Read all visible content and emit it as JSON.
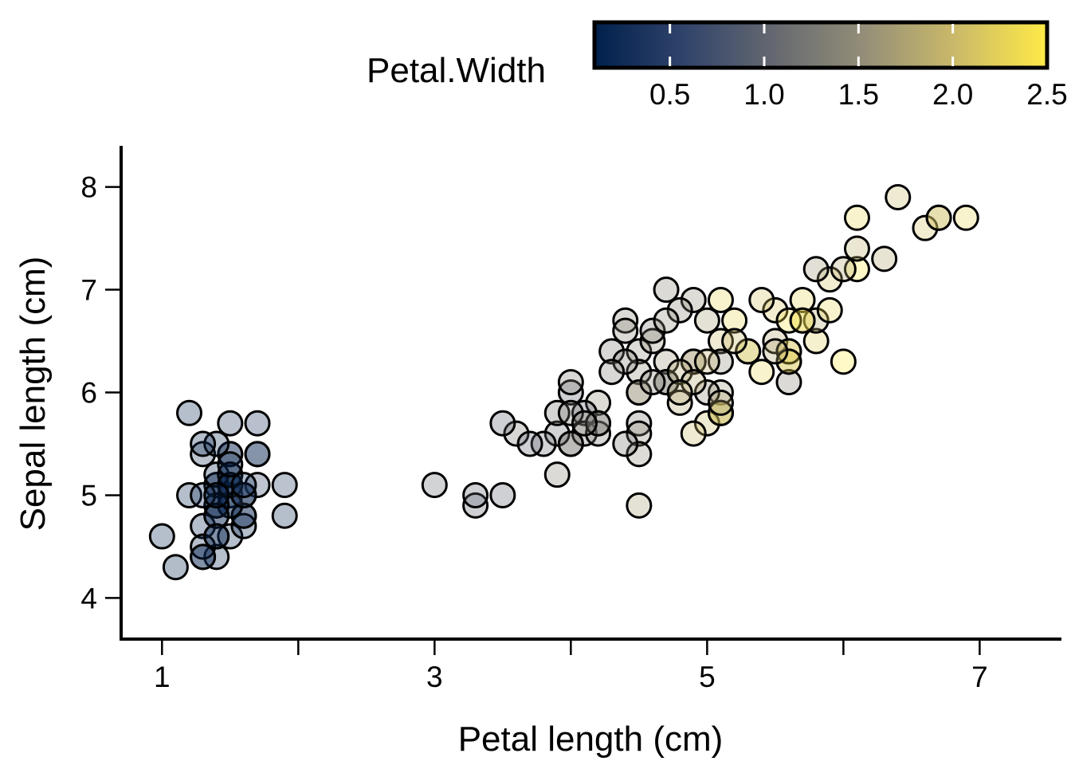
{
  "chart_data": {
    "type": "scatter",
    "xlabel": "Petal length (cm)",
    "ylabel": "Sepal length (cm)",
    "xlim": [
      0.7,
      7.6
    ],
    "ylim": [
      3.6,
      8.4
    ],
    "xticks": [
      1,
      2,
      3,
      4,
      5,
      6,
      7
    ],
    "xtick_labels": [
      "1",
      "",
      "3",
      "",
      "5",
      "",
      "7"
    ],
    "yticks": [
      4,
      5,
      6,
      7,
      8
    ],
    "ytick_labels": [
      "4",
      "5",
      "6",
      "7",
      "8"
    ],
    "grid": false,
    "legend": {
      "title": "Petal.Width",
      "placement": "top-right",
      "type": "colorbar",
      "range": [
        0.1,
        2.5
      ],
      "ticks": [
        0.5,
        1.0,
        1.5,
        2.0,
        2.5
      ],
      "tick_labels": [
        "0.5",
        "1.0",
        "1.5",
        "2.0",
        "2.5"
      ],
      "colors": [
        "#00204D",
        "#31446B",
        "#666970",
        "#958F78",
        "#CBBA69",
        "#FFEA46"
      ]
    },
    "point_alpha": 0.3,
    "points": [
      [
        1.4,
        5.1,
        0.2
      ],
      [
        1.4,
        4.9,
        0.2
      ],
      [
        1.3,
        4.7,
        0.2
      ],
      [
        1.5,
        4.6,
        0.2
      ],
      [
        1.4,
        5.0,
        0.2
      ],
      [
        1.7,
        5.4,
        0.4
      ],
      [
        1.4,
        4.6,
        0.3
      ],
      [
        1.5,
        5.0,
        0.2
      ],
      [
        1.4,
        4.4,
        0.2
      ],
      [
        1.5,
        4.9,
        0.1
      ],
      [
        1.5,
        5.4,
        0.2
      ],
      [
        1.6,
        4.8,
        0.2
      ],
      [
        1.4,
        4.8,
        0.1
      ],
      [
        1.1,
        4.3,
        0.1
      ],
      [
        1.2,
        5.8,
        0.2
      ],
      [
        1.5,
        5.7,
        0.4
      ],
      [
        1.3,
        5.4,
        0.4
      ],
      [
        1.4,
        5.1,
        0.3
      ],
      [
        1.7,
        5.7,
        0.3
      ],
      [
        1.5,
        5.1,
        0.3
      ],
      [
        1.7,
        5.4,
        0.2
      ],
      [
        1.5,
        5.1,
        0.4
      ],
      [
        1.0,
        4.6,
        0.2
      ],
      [
        1.7,
        5.1,
        0.5
      ],
      [
        1.9,
        4.8,
        0.2
      ],
      [
        1.6,
        5.0,
        0.2
      ],
      [
        1.6,
        5.0,
        0.4
      ],
      [
        1.5,
        5.2,
        0.2
      ],
      [
        1.4,
        5.2,
        0.2
      ],
      [
        1.6,
        4.7,
        0.2
      ],
      [
        1.6,
        4.8,
        0.2
      ],
      [
        1.5,
        5.4,
        0.4
      ],
      [
        1.5,
        5.2,
        0.1
      ],
      [
        1.4,
        5.5,
        0.2
      ],
      [
        1.5,
        4.9,
        0.2
      ],
      [
        1.2,
        5.0,
        0.2
      ],
      [
        1.3,
        5.5,
        0.2
      ],
      [
        1.4,
        4.9,
        0.1
      ],
      [
        1.3,
        4.4,
        0.2
      ],
      [
        1.5,
        5.1,
        0.2
      ],
      [
        1.3,
        5.0,
        0.3
      ],
      [
        1.3,
        4.5,
        0.3
      ],
      [
        1.3,
        4.4,
        0.2
      ],
      [
        1.6,
        5.0,
        0.6
      ],
      [
        1.9,
        5.1,
        0.4
      ],
      [
        1.4,
        4.8,
        0.3
      ],
      [
        1.6,
        5.1,
        0.2
      ],
      [
        1.4,
        4.6,
        0.2
      ],
      [
        1.5,
        5.3,
        0.2
      ],
      [
        1.4,
        5.0,
        0.2
      ],
      [
        4.7,
        7.0,
        1.4
      ],
      [
        4.5,
        6.4,
        1.5
      ],
      [
        4.9,
        6.9,
        1.5
      ],
      [
        4.0,
        5.5,
        1.3
      ],
      [
        4.6,
        6.5,
        1.5
      ],
      [
        4.5,
        5.7,
        1.3
      ],
      [
        4.7,
        6.3,
        1.6
      ],
      [
        3.3,
        4.9,
        1.0
      ],
      [
        4.6,
        6.6,
        1.3
      ],
      [
        3.9,
        5.2,
        1.4
      ],
      [
        3.5,
        5.0,
        1.0
      ],
      [
        4.2,
        5.9,
        1.5
      ],
      [
        4.0,
        6.0,
        1.0
      ],
      [
        4.7,
        6.1,
        1.4
      ],
      [
        3.6,
        5.6,
        1.3
      ],
      [
        4.4,
        6.7,
        1.4
      ],
      [
        4.5,
        5.6,
        1.5
      ],
      [
        4.1,
        5.8,
        1.0
      ],
      [
        4.5,
        6.2,
        1.5
      ],
      [
        3.9,
        5.6,
        1.1
      ],
      [
        4.8,
        5.9,
        1.8
      ],
      [
        4.0,
        6.1,
        1.3
      ],
      [
        4.9,
        6.3,
        1.5
      ],
      [
        4.7,
        6.1,
        1.2
      ],
      [
        4.3,
        6.4,
        1.3
      ],
      [
        4.4,
        6.6,
        1.4
      ],
      [
        4.8,
        6.8,
        1.4
      ],
      [
        5.0,
        6.7,
        1.7
      ],
      [
        4.5,
        6.0,
        1.5
      ],
      [
        3.5,
        5.7,
        1.0
      ],
      [
        3.8,
        5.5,
        1.1
      ],
      [
        3.7,
        5.5,
        1.0
      ],
      [
        3.9,
        5.8,
        1.2
      ],
      [
        5.1,
        6.0,
        1.6
      ],
      [
        4.5,
        5.4,
        1.5
      ],
      [
        4.5,
        6.0,
        1.6
      ],
      [
        4.7,
        6.7,
        1.5
      ],
      [
        4.4,
        6.3,
        1.3
      ],
      [
        4.1,
        5.6,
        1.3
      ],
      [
        4.0,
        5.5,
        1.3
      ],
      [
        4.4,
        5.5,
        1.2
      ],
      [
        4.6,
        6.1,
        1.4
      ],
      [
        4.0,
        5.8,
        1.2
      ],
      [
        3.3,
        5.0,
        1.0
      ],
      [
        4.2,
        5.6,
        1.3
      ],
      [
        4.2,
        5.7,
        1.2
      ],
      [
        4.2,
        5.7,
        1.3
      ],
      [
        4.3,
        6.2,
        1.3
      ],
      [
        3.0,
        5.1,
        1.1
      ],
      [
        4.1,
        5.7,
        1.3
      ],
      [
        6.0,
        6.3,
        2.5
      ],
      [
        5.1,
        5.8,
        1.9
      ],
      [
        5.9,
        7.1,
        2.1
      ],
      [
        5.6,
        6.3,
        1.8
      ],
      [
        5.8,
        6.5,
        2.2
      ],
      [
        6.6,
        7.6,
        2.1
      ],
      [
        4.5,
        4.9,
        1.7
      ],
      [
        6.3,
        7.3,
        1.8
      ],
      [
        5.8,
        6.7,
        1.8
      ],
      [
        6.1,
        7.2,
        2.5
      ],
      [
        5.1,
        6.5,
        2.0
      ],
      [
        5.3,
        6.4,
        1.9
      ],
      [
        5.5,
        6.8,
        2.1
      ],
      [
        5.0,
        5.7,
        2.0
      ],
      [
        5.1,
        5.8,
        2.4
      ],
      [
        5.3,
        6.4,
        2.3
      ],
      [
        5.5,
        6.5,
        1.8
      ],
      [
        6.7,
        7.7,
        2.2
      ],
      [
        6.9,
        7.7,
        2.3
      ],
      [
        5.0,
        6.0,
        1.5
      ],
      [
        5.7,
        6.9,
        2.3
      ],
      [
        4.9,
        5.6,
        2.0
      ],
      [
        6.7,
        7.7,
        2.0
      ],
      [
        4.9,
        6.3,
        1.8
      ],
      [
        5.7,
        6.7,
        2.1
      ],
      [
        6.0,
        7.2,
        1.8
      ],
      [
        4.8,
        6.2,
        1.8
      ],
      [
        4.9,
        6.1,
        1.8
      ],
      [
        5.6,
        6.4,
        2.1
      ],
      [
        5.8,
        7.2,
        1.6
      ],
      [
        6.1,
        7.4,
        1.9
      ],
      [
        6.4,
        7.9,
        2.0
      ],
      [
        5.6,
        6.4,
        2.2
      ],
      [
        5.1,
        6.3,
        1.5
      ],
      [
        5.6,
        6.1,
        1.4
      ],
      [
        6.1,
        7.7,
        2.3
      ],
      [
        5.6,
        6.3,
        2.4
      ],
      [
        5.5,
        6.4,
        1.8
      ],
      [
        4.8,
        6.0,
        1.8
      ],
      [
        5.4,
        6.9,
        2.1
      ],
      [
        5.6,
        6.7,
        2.4
      ],
      [
        5.1,
        6.9,
        2.3
      ],
      [
        5.1,
        5.8,
        1.9
      ],
      [
        5.9,
        6.8,
        2.3
      ],
      [
        5.7,
        6.7,
        2.5
      ],
      [
        5.2,
        6.7,
        2.3
      ],
      [
        5.0,
        6.3,
        1.9
      ],
      [
        5.2,
        6.5,
        2.0
      ],
      [
        5.4,
        6.2,
        2.3
      ],
      [
        5.1,
        5.9,
        1.8
      ]
    ]
  }
}
